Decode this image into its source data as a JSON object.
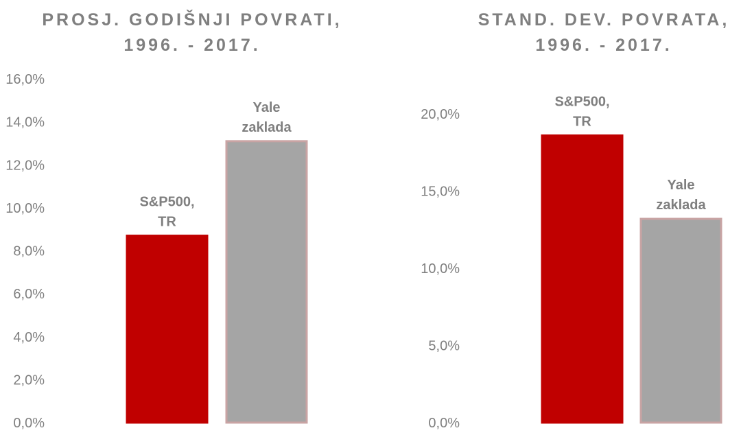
{
  "colors": {
    "sp500": "#c00000",
    "sp500_border": "#c00000",
    "yale": "#a5a5a5",
    "yale_border": "#c9a4a4",
    "text": "#7f7f7f"
  },
  "chart_data": [
    {
      "type": "bar",
      "title_lines": [
        "PROSJ. GODIŠNJI POVRATI,",
        "1996. - 2017."
      ],
      "categories": [
        "S&P500, TR",
        "Yale zaklada"
      ],
      "label_lines": [
        [
          "S&P500,",
          "TR"
        ],
        [
          "Yale",
          "zaklada"
        ]
      ],
      "values": [
        8.7,
        13.1
      ],
      "unit": "%",
      "ylim": [
        0,
        16
      ],
      "yticks": [
        0,
        2,
        4,
        6,
        8,
        10,
        12,
        14,
        16
      ],
      "ytick_labels": [
        "0,0%",
        "2,0%",
        "4,0%",
        "6,0%",
        "8,0%",
        "10,0%",
        "12,0%",
        "14,0%",
        "16,0%"
      ],
      "grid": false,
      "legend": "none"
    },
    {
      "type": "bar",
      "title_lines": [
        "STAND. DEV. POVRATA,",
        "1996. - 2017."
      ],
      "categories": [
        "S&P500, TR",
        "Yale zaklada"
      ],
      "label_lines": [
        [
          "S&P500,",
          "TR"
        ],
        [
          "Yale",
          "zaklada"
        ]
      ],
      "values": [
        18.6,
        13.2
      ],
      "unit": "%",
      "ylim": [
        0,
        22
      ],
      "yticks": [
        0,
        5,
        10,
        15,
        20
      ],
      "ytick_labels": [
        "0,0%",
        "5,0%",
        "10,0%",
        "15,0%",
        "20,0%"
      ],
      "grid": false,
      "legend": "none"
    }
  ]
}
